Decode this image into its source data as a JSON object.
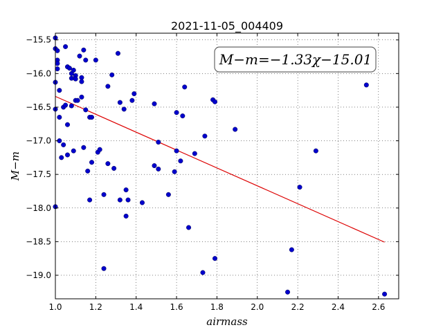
{
  "chart_data": {
    "type": "scatter",
    "title": "2021-11-05_004409",
    "xlabel": "airmass",
    "ylabel": "M−m",
    "xlim": [
      1.0,
      2.7
    ],
    "ylim": [
      -15.4,
      -19.35
    ],
    "y_inverted": true,
    "grid": true,
    "grid_style": "dotted",
    "point_color": "#0000cc",
    "line_color": "#dd0000",
    "xticks": [
      "1.0",
      "1.2",
      "1.4",
      "1.6",
      "1.8",
      "2.0",
      "2.2",
      "2.4",
      "2.6"
    ],
    "xtick_values": [
      1.0,
      1.2,
      1.4,
      1.6,
      1.8,
      2.0,
      2.2,
      2.4,
      2.6
    ],
    "yticks": [
      "−15.5",
      "−16.0",
      "−16.5",
      "−17.0",
      "−17.5",
      "−18.0",
      "−18.5",
      "−19.0"
    ],
    "ytick_values": [
      -15.5,
      -16.0,
      -16.5,
      -17.0,
      -17.5,
      -18.0,
      -18.5,
      -19.0
    ],
    "annotation": "M−m=−1.33χ−15.01",
    "annotation_position": "top-right",
    "fit": {
      "slope": -1.33,
      "intercept": -15.01,
      "x_range": [
        1.0,
        2.63
      ]
    },
    "series": [
      {
        "type": "scatter",
        "points": [
          [
            1.0,
            -15.47
          ],
          [
            1.0,
            -15.63
          ],
          [
            1.01,
            -15.66
          ],
          [
            1.01,
            -15.8
          ],
          [
            1.01,
            -15.85
          ],
          [
            1.01,
            -15.93
          ],
          [
            1.0,
            -16.13
          ],
          [
            1.0,
            -16.53
          ],
          [
            1.0,
            -17.98
          ],
          [
            1.02,
            -16.25
          ],
          [
            1.02,
            -16.65
          ],
          [
            1.02,
            -17.0
          ],
          [
            1.03,
            -17.25
          ],
          [
            1.04,
            -17.06
          ],
          [
            1.04,
            -16.5
          ],
          [
            1.05,
            -16.47
          ],
          [
            1.05,
            -15.6
          ],
          [
            1.06,
            -15.9
          ],
          [
            1.06,
            -17.21
          ],
          [
            1.06,
            -16.76
          ],
          [
            1.07,
            -15.92
          ],
          [
            1.08,
            -16.0
          ],
          [
            1.08,
            -16.07
          ],
          [
            1.08,
            -16.48
          ],
          [
            1.09,
            -15.95
          ],
          [
            1.09,
            -17.15
          ],
          [
            1.1,
            -16.03
          ],
          [
            1.1,
            -16.08
          ],
          [
            1.1,
            -16.4
          ],
          [
            1.11,
            -16.4
          ],
          [
            1.12,
            -15.74
          ],
          [
            1.13,
            -16.06
          ],
          [
            1.13,
            -16.12
          ],
          [
            1.13,
            -16.35
          ],
          [
            1.14,
            -15.65
          ],
          [
            1.14,
            -17.1
          ],
          [
            1.15,
            -15.8
          ],
          [
            1.15,
            -16.54
          ],
          [
            1.16,
            -17.45
          ],
          [
            1.17,
            -16.65
          ],
          [
            1.17,
            -17.88
          ],
          [
            1.18,
            -16.65
          ],
          [
            1.18,
            -17.32
          ],
          [
            1.2,
            -15.8
          ],
          [
            1.21,
            -17.17
          ],
          [
            1.22,
            -17.13
          ],
          [
            1.24,
            -17.8
          ],
          [
            1.24,
            -18.9
          ],
          [
            1.26,
            -17.34
          ],
          [
            1.26,
            -16.19
          ],
          [
            1.28,
            -16.02
          ],
          [
            1.29,
            -17.41
          ],
          [
            1.31,
            -15.7
          ],
          [
            1.32,
            -16.43
          ],
          [
            1.32,
            -17.88
          ],
          [
            1.34,
            -16.53
          ],
          [
            1.35,
            -17.73
          ],
          [
            1.35,
            -18.12
          ],
          [
            1.36,
            -17.88
          ],
          [
            1.38,
            -16.4
          ],
          [
            1.39,
            -16.3
          ],
          [
            1.43,
            -17.92
          ],
          [
            1.49,
            -16.45
          ],
          [
            1.49,
            -17.37
          ],
          [
            1.51,
            -17.42
          ],
          [
            1.51,
            -17.02
          ],
          [
            1.56,
            -17.8
          ],
          [
            1.59,
            -17.46
          ],
          [
            1.6,
            -17.15
          ],
          [
            1.6,
            -16.58
          ],
          [
            1.62,
            -17.3
          ],
          [
            1.63,
            -16.63
          ],
          [
            1.64,
            -16.2
          ],
          [
            1.66,
            -18.29
          ],
          [
            1.69,
            -17.19
          ],
          [
            1.73,
            -18.96
          ],
          [
            1.74,
            -16.93
          ],
          [
            1.78,
            -16.39
          ],
          [
            1.79,
            -16.42
          ],
          [
            1.79,
            -18.75
          ],
          [
            1.89,
            -16.83
          ],
          [
            2.15,
            -19.25
          ],
          [
            2.17,
            -18.62
          ],
          [
            2.21,
            -17.69
          ],
          [
            2.29,
            -17.15
          ],
          [
            2.54,
            -16.17
          ],
          [
            2.63,
            -19.28
          ]
        ]
      }
    ]
  }
}
